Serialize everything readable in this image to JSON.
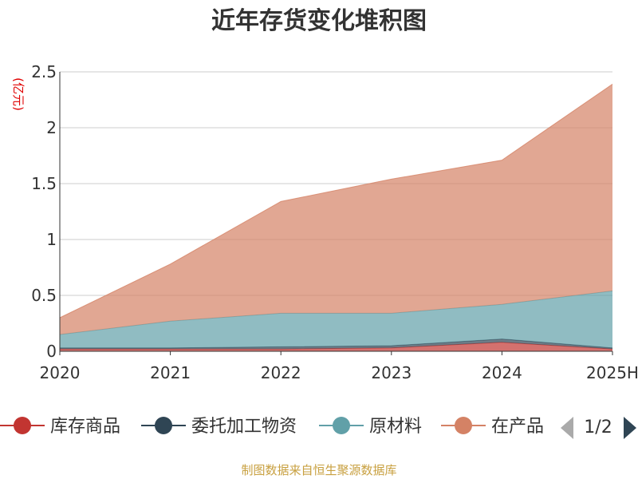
{
  "chart_data": {
    "type": "area",
    "stacked": true,
    "title": "近年存货变化堆积图",
    "ylabel": "(亿元)",
    "xlabel": "",
    "categories": [
      "2020",
      "2021",
      "2022",
      "2023",
      "2024",
      "2025H"
    ],
    "ylim": [
      0,
      2.5
    ],
    "yticks": [
      "0",
      "0.5",
      "1",
      "1.5",
      "2",
      "2.5"
    ],
    "grid": true,
    "legend_position": "bottom",
    "series": [
      {
        "name": "库存商品",
        "color": "#c23531",
        "values": [
          0.02,
          0.02,
          0.02,
          0.03,
          0.08,
          0.02
        ]
      },
      {
        "name": "委托加工物资",
        "color": "#2f4554",
        "values": [
          0.01,
          0.01,
          0.02,
          0.02,
          0.03,
          0.01
        ]
      },
      {
        "name": "原材料",
        "color": "#61a0a8",
        "values": [
          0.12,
          0.24,
          0.3,
          0.29,
          0.31,
          0.51
        ]
      },
      {
        "name": "在产品",
        "color": "#d48265",
        "values": [
          0.15,
          0.51,
          1.0,
          1.2,
          1.29,
          1.85
        ]
      }
    ],
    "legend_page": "1/2",
    "source": "制图数据来自恒生聚源数据库"
  }
}
